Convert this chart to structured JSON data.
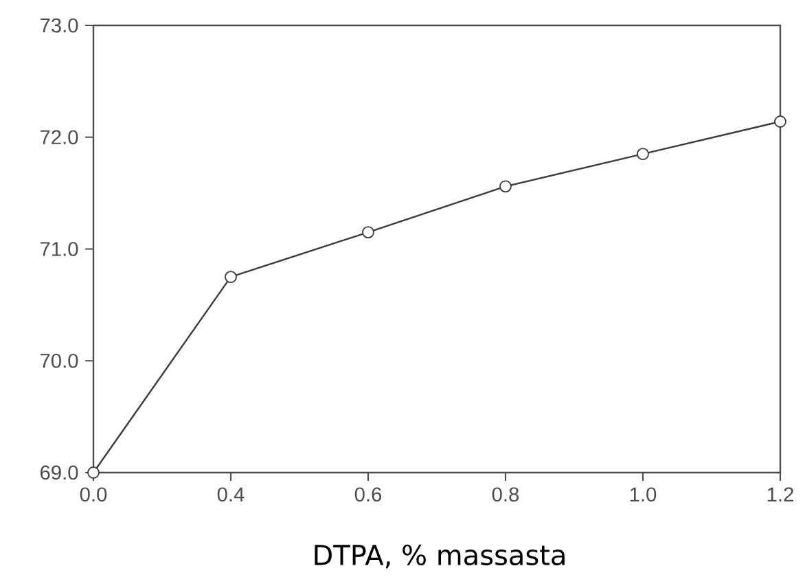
{
  "chart_data": {
    "type": "line",
    "xlabel": "DTPA, % massasta",
    "categories": [
      "0.0",
      "0.4",
      "0.6",
      "0.8",
      "1.0",
      "1.2"
    ],
    "series": [
      {
        "color": "#3c3c3c",
        "values": [
          69.0,
          70.75,
          71.15,
          71.56,
          71.85,
          72.14
        ]
      }
    ],
    "ylim": [
      69.0,
      73.0
    ],
    "yticks": [
      {
        "value": 69,
        "label": "69.0"
      },
      {
        "value": 70,
        "label": "70.0"
      },
      {
        "value": 71,
        "label": "71.0"
      },
      {
        "value": 72,
        "label": "72.0"
      },
      {
        "value": 73,
        "label": "73.0"
      }
    ],
    "grid": false,
    "marker": "circle",
    "line_style": "solid"
  }
}
